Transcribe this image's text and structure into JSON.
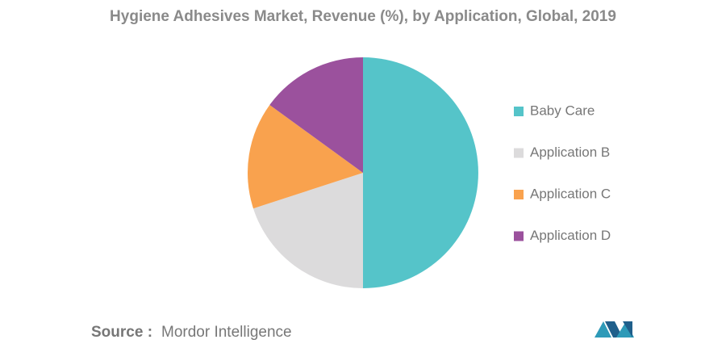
{
  "chart_data": {
    "type": "pie",
    "title": "Hygiene Adhesives Market, Revenue (%), by Application, Global, 2019",
    "categories": [
      "Baby Care",
      "Application B",
      "Application C",
      "Application D"
    ],
    "values": [
      50,
      20,
      15,
      15
    ],
    "colors": [
      "#55c4c9",
      "#dcdbdc",
      "#f9a24e",
      "#9b519d"
    ],
    "source_label": "Source :",
    "source": "Mordor Intelligence"
  }
}
